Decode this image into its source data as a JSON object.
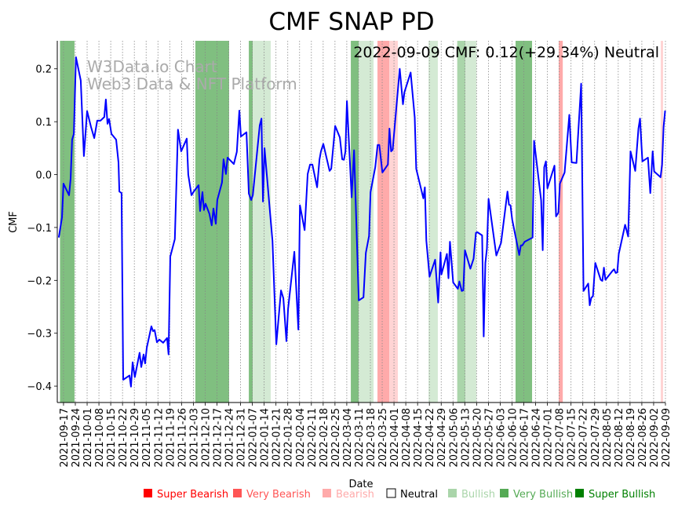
{
  "chart_data": {
    "type": "line",
    "title": "CMF SNAP PD",
    "annotation": "2022-09-09 CMF: 0.12(+29.34%) Neutral",
    "watermark": [
      "W3Data.io Chart",
      "Web3 Data & NFT Platform"
    ],
    "xlabel": "Date",
    "ylabel": "CMF",
    "x_origin_date": "2021-09-17",
    "x_units": "days since 2021-09-17",
    "xlim": [
      -3.7,
      357
    ],
    "ylim": [
      -0.431,
      0.253
    ],
    "grid": "vertical dotted at each x tick",
    "y_ticks": [
      0.2,
      0.1,
      0.0,
      -0.1,
      -0.2,
      -0.3,
      -0.4
    ],
    "y_tick_labels": [
      "0.2",
      "0.1",
      "0.0",
      "−0.1",
      "−0.2",
      "−0.3",
      "−0.4"
    ],
    "x_tick_labels": [
      "2021-09-17",
      "2021-09-24",
      "2021-10-01",
      "2021-10-08",
      "2021-10-15",
      "2021-10-22",
      "2021-10-29",
      "2021-11-05",
      "2021-11-12",
      "2021-11-19",
      "2021-11-26",
      "2021-12-03",
      "2021-12-10",
      "2021-12-17",
      "2021-12-24",
      "2021-12-31",
      "2022-01-07",
      "2022-01-14",
      "2022-01-21",
      "2022-01-28",
      "2022-02-04",
      "2022-02-11",
      "2022-02-18",
      "2022-02-25",
      "2022-03-04",
      "2022-03-11",
      "2022-03-18",
      "2022-03-25",
      "2022-04-01",
      "2022-04-08",
      "2022-04-15",
      "2022-04-22",
      "2022-04-29",
      "2022-05-06",
      "2022-05-13",
      "2022-05-20",
      "2022-05-27",
      "2022-06-03",
      "2022-06-10",
      "2022-06-17",
      "2022-06-24",
      "2022-07-01",
      "2022-07-08",
      "2022-07-15",
      "2022-07-22",
      "2022-07-29",
      "2022-08-05",
      "2022-08-12",
      "2022-08-19",
      "2022-08-26",
      "2022-09-02",
      "2022-09-09"
    ],
    "line_color": "#0000ff",
    "series": [
      {
        "name": "CMF",
        "points": [
          [
            -2.8,
            -0.119
          ],
          [
            -0.9,
            -0.081
          ],
          [
            0,
            -0.017
          ],
          [
            3.3,
            -0.039
          ],
          [
            4.2,
            -0.008
          ],
          [
            5.1,
            0.066
          ],
          [
            6.1,
            0.077
          ],
          [
            7.4,
            0.222
          ],
          [
            10.2,
            0.178
          ],
          [
            12.1,
            0.035
          ],
          [
            14,
            0.12
          ],
          [
            16.3,
            0.09
          ],
          [
            18.2,
            0.069
          ],
          [
            20,
            0.102
          ],
          [
            21.9,
            0.102
          ],
          [
            24.2,
            0.109
          ],
          [
            25.1,
            0.142
          ],
          [
            26.1,
            0.096
          ],
          [
            27,
            0.105
          ],
          [
            28.4,
            0.077
          ],
          [
            31.2,
            0.066
          ],
          [
            32.6,
            0.023
          ],
          [
            33.1,
            -0.032
          ],
          [
            34.4,
            -0.035
          ],
          [
            35.4,
            -0.388
          ],
          [
            39.1,
            -0.38
          ],
          [
            40,
            -0.401
          ],
          [
            41,
            -0.355
          ],
          [
            42.3,
            -0.383
          ],
          [
            45.1,
            -0.337
          ],
          [
            46.1,
            -0.364
          ],
          [
            47.5,
            -0.34
          ],
          [
            48.4,
            -0.357
          ],
          [
            49.4,
            -0.327
          ],
          [
            52.1,
            -0.287
          ],
          [
            53.1,
            -0.296
          ],
          [
            54,
            -0.294
          ],
          [
            55.4,
            -0.317
          ],
          [
            56.8,
            -0.312
          ],
          [
            59.1,
            -0.318
          ],
          [
            60.9,
            -0.311
          ],
          [
            61.4,
            -0.309
          ],
          [
            62.3,
            -0.34
          ],
          [
            63.3,
            -0.155
          ],
          [
            66,
            -0.122
          ],
          [
            67.9,
            0.085
          ],
          [
            69.8,
            0.044
          ],
          [
            73.1,
            0.068
          ],
          [
            74,
            0.0
          ],
          [
            75.9,
            -0.039
          ],
          [
            77.7,
            -0.03
          ],
          [
            80.1,
            -0.02
          ],
          [
            81,
            -0.069
          ],
          [
            82.4,
            -0.033
          ],
          [
            83.3,
            -0.067
          ],
          [
            84.2,
            -0.055
          ],
          [
            86.5,
            -0.074
          ],
          [
            87.9,
            -0.096
          ],
          [
            88.9,
            -0.064
          ],
          [
            90.3,
            -0.093
          ],
          [
            91.2,
            -0.048
          ],
          [
            94,
            -0.015
          ],
          [
            94.9,
            0.029
          ],
          [
            96.3,
            0.001
          ],
          [
            97.3,
            0.032
          ],
          [
            101,
            0.02
          ],
          [
            102.8,
            0.043
          ],
          [
            104.3,
            0.121
          ],
          [
            105.2,
            0.072
          ],
          [
            108.5,
            0.08
          ],
          [
            109.9,
            -0.036
          ],
          [
            111.3,
            -0.048
          ],
          [
            112.3,
            -0.039
          ],
          [
            116.4,
            0.093
          ],
          [
            117.4,
            0.106
          ],
          [
            118.3,
            -0.051
          ],
          [
            119.2,
            0.05
          ],
          [
            123.9,
            -0.125
          ],
          [
            126.2,
            -0.321
          ],
          [
            129,
            -0.219
          ],
          [
            130.4,
            -0.234
          ],
          [
            132.2,
            -0.315
          ],
          [
            133.2,
            -0.254
          ],
          [
            136.9,
            -0.146
          ],
          [
            139.3,
            -0.293
          ],
          [
            140.2,
            -0.058
          ],
          [
            143,
            -0.105
          ],
          [
            144.8,
            0.001
          ],
          [
            146.2,
            0.019
          ],
          [
            147.6,
            0.019
          ],
          [
            150.4,
            -0.024
          ],
          [
            151.8,
            0.028
          ],
          [
            152.7,
            0.044
          ],
          [
            154.1,
            0.058
          ],
          [
            157.8,
            0.007
          ],
          [
            158.8,
            0.011
          ],
          [
            161.1,
            0.092
          ],
          [
            163.9,
            0.07
          ],
          [
            165.3,
            0.029
          ],
          [
            166.3,
            0.028
          ],
          [
            167.2,
            0.044
          ],
          [
            168.1,
            0.139
          ],
          [
            170.9,
            -0.043
          ],
          [
            172.3,
            0.046
          ],
          [
            175.1,
            -0.238
          ],
          [
            177.9,
            -0.232
          ],
          [
            179.3,
            -0.148
          ],
          [
            181.2,
            -0.116
          ],
          [
            182.1,
            -0.033
          ],
          [
            184.9,
            0.014
          ],
          [
            186.3,
            0.056
          ],
          [
            187.3,
            0.056
          ],
          [
            189.1,
            0.004
          ],
          [
            192.4,
            0.019
          ],
          [
            193.3,
            0.087
          ],
          [
            194.3,
            0.044
          ],
          [
            195.2,
            0.047
          ],
          [
            199.4,
            0.2
          ],
          [
            201.3,
            0.133
          ],
          [
            202.2,
            0.156
          ],
          [
            205.9,
            0.193
          ],
          [
            208.3,
            0.108
          ],
          [
            209.2,
            0.011
          ],
          [
            213.4,
            -0.045
          ],
          [
            214.3,
            -0.024
          ],
          [
            215.2,
            -0.125
          ],
          [
            217.1,
            -0.193
          ],
          [
            220.4,
            -0.161
          ],
          [
            222.2,
            -0.242
          ],
          [
            223.6,
            -0.147
          ],
          [
            224.1,
            -0.189
          ],
          [
            227.4,
            -0.15
          ],
          [
            228.3,
            -0.196
          ],
          [
            229.2,
            -0.127
          ],
          [
            231.1,
            -0.204
          ],
          [
            233.9,
            -0.216
          ],
          [
            234.8,
            -0.202
          ],
          [
            236.2,
            -0.22
          ],
          [
            237.1,
            -0.219
          ],
          [
            238.1,
            -0.143
          ],
          [
            241.3,
            -0.178
          ],
          [
            243.2,
            -0.159
          ],
          [
            244.6,
            -0.11
          ],
          [
            245.5,
            -0.109
          ],
          [
            248.3,
            -0.115
          ],
          [
            249.2,
            -0.306
          ],
          [
            250.2,
            -0.167
          ],
          [
            251.1,
            -0.14
          ],
          [
            252.1,
            -0.046
          ],
          [
            256.7,
            -0.153
          ],
          [
            259.5,
            -0.129
          ],
          [
            263.3,
            -0.032
          ],
          [
            264.2,
            -0.057
          ],
          [
            265.1,
            -0.058
          ],
          [
            266.1,
            -0.085
          ],
          [
            270.3,
            -0.152
          ],
          [
            271.2,
            -0.134
          ],
          [
            272.1,
            -0.134
          ],
          [
            273.5,
            -0.127
          ],
          [
            278.2,
            -0.119
          ],
          [
            279.1,
            0.064
          ],
          [
            283.3,
            -0.049
          ],
          [
            284.2,
            -0.143
          ],
          [
            285.1,
            0.014
          ],
          [
            286.1,
            0.025
          ],
          [
            287,
            -0.026
          ],
          [
            291.2,
            0.017
          ],
          [
            292.1,
            -0.079
          ],
          [
            293.5,
            -0.072
          ],
          [
            294.4,
            -0.017
          ],
          [
            297.2,
            0.004
          ],
          [
            300,
            0.113
          ],
          [
            301.4,
            0.023
          ],
          [
            304.2,
            0.022
          ],
          [
            307,
            0.172
          ],
          [
            308.4,
            -0.22
          ],
          [
            311.2,
            -0.206
          ],
          [
            312.1,
            -0.247
          ],
          [
            313,
            -0.233
          ],
          [
            314,
            -0.23
          ],
          [
            315.4,
            -0.167
          ],
          [
            318.6,
            -0.199
          ],
          [
            319.6,
            -0.201
          ],
          [
            320.5,
            -0.176
          ],
          [
            321.4,
            -0.199
          ],
          [
            325.6,
            -0.182
          ],
          [
            326.5,
            -0.179
          ],
          [
            327.5,
            -0.186
          ],
          [
            328.4,
            -0.185
          ],
          [
            329.3,
            -0.15
          ],
          [
            333.1,
            -0.095
          ],
          [
            334.9,
            -0.117
          ],
          [
            336.3,
            0.044
          ],
          [
            339.1,
            0.007
          ],
          [
            341,
            0.087
          ],
          [
            341.9,
            0.106
          ],
          [
            343.3,
            0.025
          ],
          [
            346.6,
            0.032
          ],
          [
            348,
            -0.035
          ],
          [
            349.4,
            0.044
          ],
          [
            350.3,
            0.006
          ],
          [
            354.1,
            -0.005
          ],
          [
            355,
            0.019
          ],
          [
            355.9,
            0.09
          ],
          [
            356.8,
            0.121
          ]
        ]
      }
    ],
    "bands": [
      {
        "category": "Very Bullish",
        "from": -2.1,
        "to": 6.5,
        "color": "#80bf80"
      },
      {
        "category": "Very Bullish",
        "from": 78.2,
        "to": 98.2,
        "color": "#80bf80"
      },
      {
        "category": "Very Bullish",
        "from": 109.9,
        "to": 112.2,
        "color": "#80bf80"
      },
      {
        "category": "Bullish",
        "from": 112.2,
        "to": 122.9,
        "color": "#d4ead4"
      },
      {
        "category": "Very Bullish",
        "from": 170.4,
        "to": 175.1,
        "color": "#80bf80"
      },
      {
        "category": "Bullish",
        "from": 175.1,
        "to": 183.9,
        "color": "#d4ead4"
      },
      {
        "category": "Very Bearish",
        "from": 186.2,
        "to": 193.2,
        "color": "#ffaaaa"
      },
      {
        "category": "Bearish",
        "from": 193.2,
        "to": 198.3,
        "color": "#ffd4d4"
      },
      {
        "category": "Bullish",
        "from": 216.5,
        "to": 222,
        "color": "#d4ead4"
      },
      {
        "category": "Bullish",
        "from": 233.5,
        "to": 238.3,
        "color": "#aad5aa"
      },
      {
        "category": "Bullish",
        "from": 238.3,
        "to": 244.9,
        "color": "#d4ead4"
      },
      {
        "category": "Very Bullish",
        "from": 268.1,
        "to": 277.9,
        "color": "#80bf80"
      },
      {
        "category": "Very Bearish",
        "from": 293.7,
        "to": 296.1,
        "color": "#ffaaaa"
      },
      {
        "category": "Bearish",
        "from": 354.2,
        "to": 355.6,
        "color": "#ffd4d4"
      }
    ],
    "legend": {
      "placement": "bottom",
      "items": [
        {
          "label": "Super Bearish",
          "color": "#ff0000",
          "text_color": "#ff0000"
        },
        {
          "label": "Very Bearish",
          "color": "#ff5555",
          "text_color": "#ff5555"
        },
        {
          "label": "Bearish",
          "color": "#ffaaaa",
          "text_color": "#ffaaaa"
        },
        {
          "label": "Neutral",
          "color": "#ffffff",
          "text_color": "#000000",
          "outline": true
        },
        {
          "label": "Bullish",
          "color": "#aad5aa",
          "text_color": "#aad5aa"
        },
        {
          "label": "Very Bullish",
          "color": "#55aa55",
          "text_color": "#55aa55"
        },
        {
          "label": "Super Bullish",
          "color": "#008000",
          "text_color": "#008000"
        }
      ]
    }
  }
}
